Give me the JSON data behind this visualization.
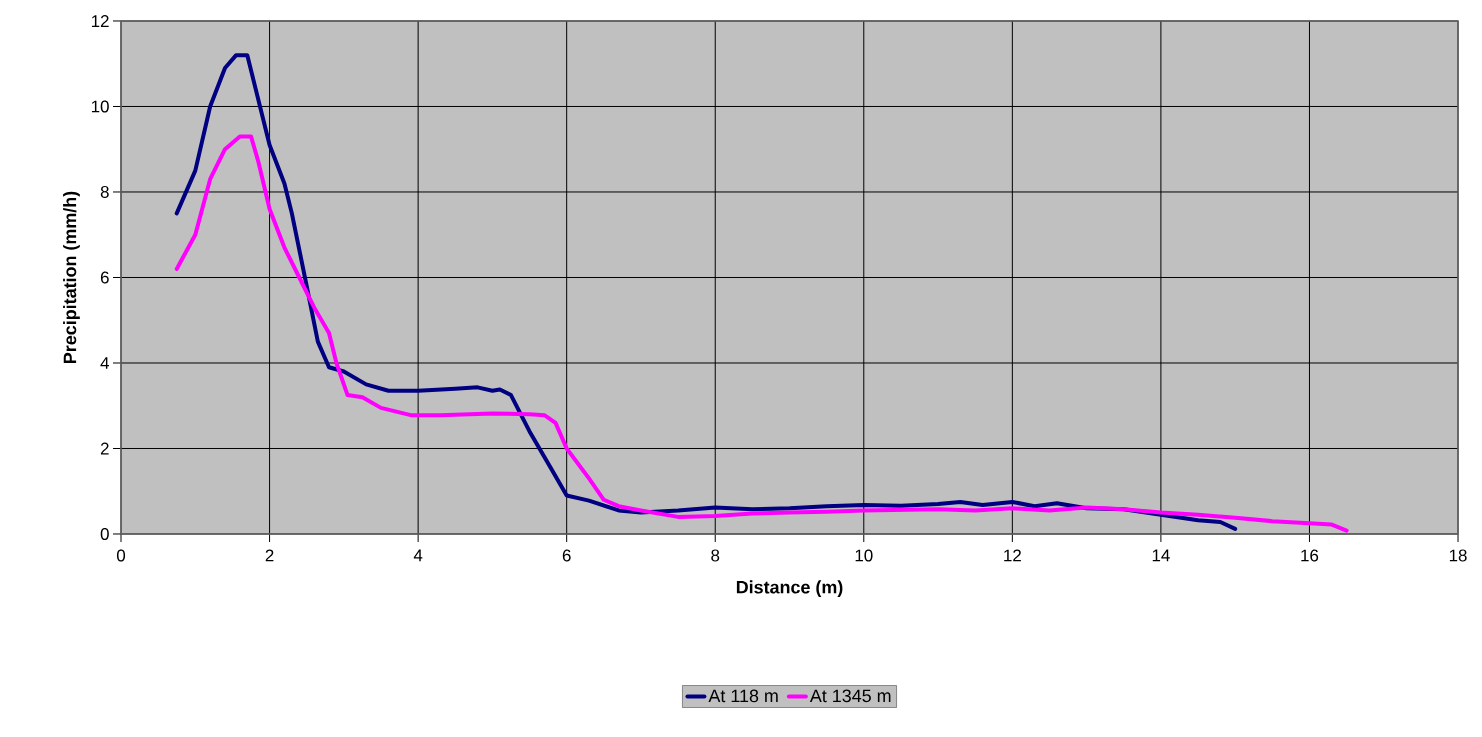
{
  "chart_data": {
    "type": "line",
    "xlabel": "Distance (m)",
    "ylabel": "Precipitation (mm/h)",
    "xlim": [
      0,
      18
    ],
    "ylim": [
      0,
      12
    ],
    "xticks": [
      0,
      2,
      4,
      6,
      8,
      10,
      12,
      14,
      16,
      18
    ],
    "yticks": [
      0,
      2,
      4,
      6,
      8,
      10,
      12
    ],
    "grid": true,
    "legend": "bottom",
    "marker": "none",
    "line_style": "solid",
    "series": [
      {
        "name": "At 118 m",
        "color": "#000080",
        "x": [
          0.75,
          1.0,
          1.2,
          1.4,
          1.55,
          1.7,
          1.8,
          2.0,
          2.2,
          2.3,
          2.5,
          2.65,
          2.8,
          3.0,
          3.3,
          3.6,
          4.0,
          4.5,
          4.8,
          5.0,
          5.1,
          5.25,
          5.5,
          5.8,
          6.0,
          6.3,
          6.7,
          7.0,
          7.5,
          8.0,
          8.5,
          9.0,
          9.5,
          10,
          10.5,
          11.0,
          11.3,
          11.6,
          12.0,
          12.3,
          12.6,
          13.0,
          13.5,
          14.0,
          14.5,
          14.8,
          15.0
        ],
        "values": [
          7.5,
          8.5,
          10.0,
          10.9,
          11.2,
          11.2,
          10.5,
          9.1,
          8.2,
          7.5,
          5.8,
          4.5,
          3.9,
          3.8,
          3.5,
          3.35,
          3.35,
          3.4,
          3.43,
          3.35,
          3.38,
          3.25,
          2.4,
          1.5,
          0.9,
          0.78,
          0.55,
          0.5,
          0.55,
          0.62,
          0.58,
          0.6,
          0.65,
          0.68,
          0.66,
          0.7,
          0.75,
          0.68,
          0.75,
          0.65,
          0.72,
          0.6,
          0.58,
          0.45,
          0.32,
          0.28,
          0.12
        ]
      },
      {
        "name": "At 1345 m",
        "color": "#ff00ff",
        "x": [
          0.75,
          1.0,
          1.2,
          1.4,
          1.6,
          1.75,
          1.85,
          2.0,
          2.2,
          2.4,
          2.6,
          2.8,
          2.9,
          3.05,
          3.25,
          3.5,
          3.9,
          4.3,
          5.0,
          5.5,
          5.7,
          5.85,
          6.0,
          6.3,
          6.5,
          6.7,
          7.0,
          7.5,
          8.0,
          8.5,
          9.0,
          9.5,
          10,
          11,
          11.5,
          12,
          12.5,
          13,
          13.5,
          14,
          14.5,
          15,
          15.5,
          16,
          16.3,
          16.5
        ],
        "values": [
          6.2,
          7.0,
          8.3,
          9.0,
          9.3,
          9.3,
          8.7,
          7.6,
          6.7,
          6.0,
          5.3,
          4.7,
          4.0,
          3.25,
          3.2,
          2.95,
          2.78,
          2.78,
          2.82,
          2.8,
          2.78,
          2.6,
          2.0,
          1.3,
          0.8,
          0.65,
          0.55,
          0.4,
          0.42,
          0.48,
          0.5,
          0.52,
          0.55,
          0.58,
          0.55,
          0.6,
          0.55,
          0.62,
          0.58,
          0.5,
          0.45,
          0.38,
          0.3,
          0.25,
          0.22,
          0.08
        ]
      }
    ]
  }
}
